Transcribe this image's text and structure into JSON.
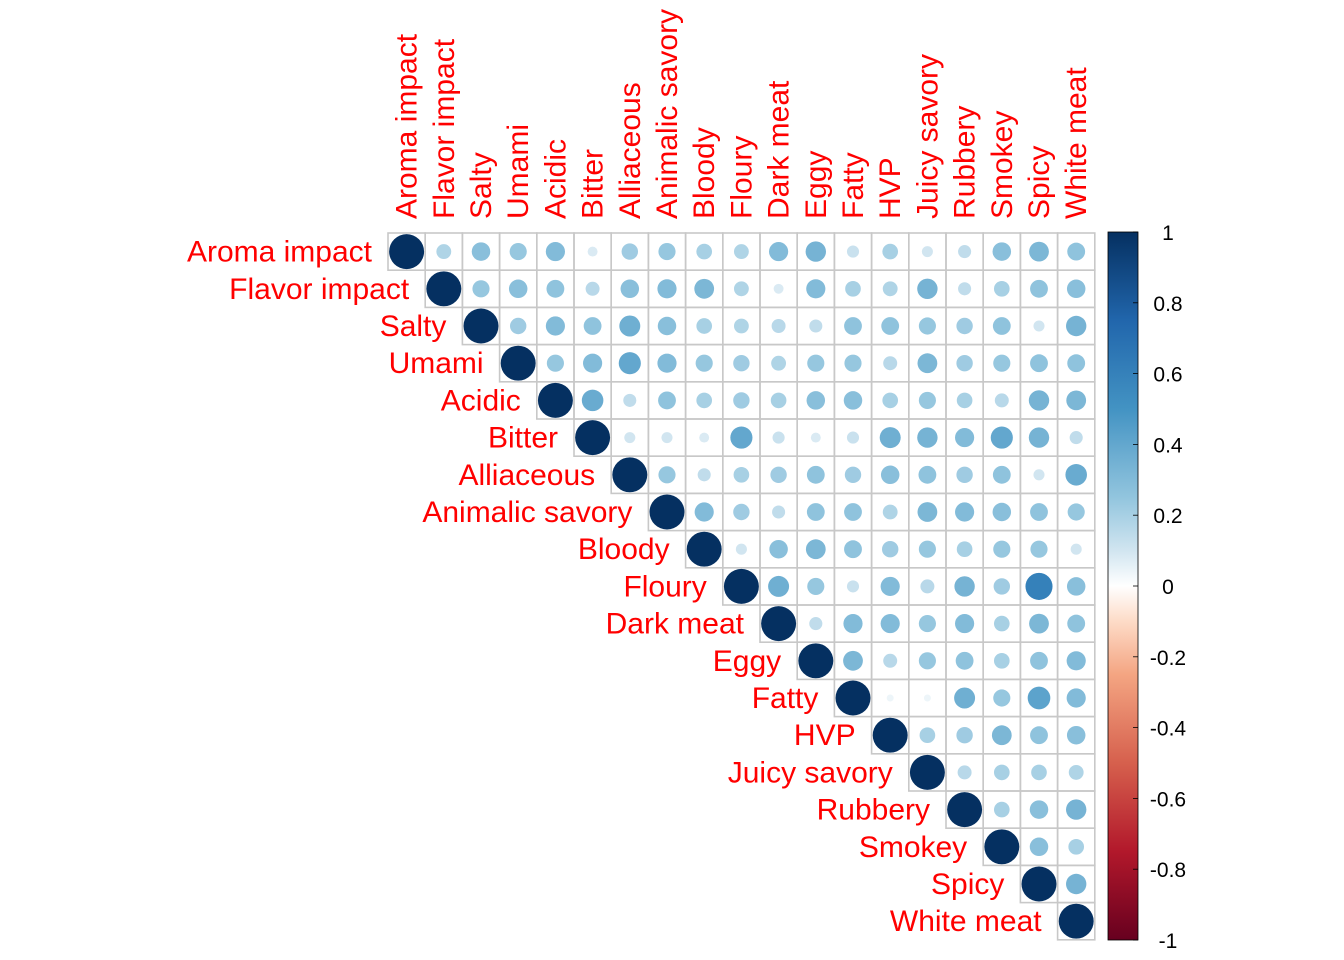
{
  "chart_data": {
    "type": "heatmap",
    "style": "correlation matrix, upper triangle, circle glyphs",
    "variables": [
      "Aroma impact",
      "Flavor impact",
      "Salty",
      "Umami",
      "Acidic",
      "Bitter",
      "Alliaceous",
      "Animalic savory",
      "Bloody",
      "Floury",
      "Dark meat",
      "Eggy",
      "Fatty",
      "HVP",
      "Juicy savory",
      "Rubbery",
      "Smokey",
      "Spicy",
      "White meat"
    ],
    "matrix": [
      [
        1,
        0.18,
        0.28,
        0.24,
        0.3,
        0.08,
        0.22,
        0.24,
        0.2,
        0.18,
        0.3,
        0.34,
        0.12,
        0.2,
        0.1,
        0.14,
        0.28,
        0.32,
        0.26
      ],
      [
        0.18,
        1,
        0.24,
        0.28,
        0.26,
        0.16,
        0.28,
        0.3,
        0.32,
        0.18,
        0.08,
        0.3,
        0.2,
        0.18,
        0.34,
        0.14,
        0.2,
        0.26,
        0.28
      ],
      [
        0.28,
        0.24,
        1,
        0.22,
        0.3,
        0.26,
        0.36,
        0.28,
        0.2,
        0.18,
        0.16,
        0.14,
        0.26,
        0.26,
        0.24,
        0.22,
        0.26,
        0.1,
        0.34
      ],
      [
        0.24,
        0.28,
        0.22,
        1,
        0.24,
        0.3,
        0.4,
        0.3,
        0.24,
        0.22,
        0.18,
        0.24,
        0.24,
        0.16,
        0.32,
        0.22,
        0.24,
        0.26,
        0.26
      ],
      [
        0.3,
        0.26,
        0.3,
        0.24,
        1,
        0.38,
        0.14,
        0.26,
        0.2,
        0.22,
        0.2,
        0.28,
        0.28,
        0.2,
        0.24,
        0.2,
        0.16,
        0.34,
        0.32
      ],
      [
        0.08,
        0.16,
        0.26,
        0.3,
        0.38,
        1,
        0.1,
        0.1,
        0.08,
        0.4,
        0.12,
        0.08,
        0.12,
        0.36,
        0.34,
        0.3,
        0.4,
        0.34,
        0.14
      ],
      [
        0.22,
        0.28,
        0.36,
        0.4,
        0.14,
        0.1,
        1,
        0.24,
        0.14,
        0.2,
        0.22,
        0.26,
        0.22,
        0.28,
        0.26,
        0.22,
        0.26,
        0.1,
        0.38
      ],
      [
        0.24,
        0.3,
        0.28,
        0.3,
        0.26,
        0.1,
        0.24,
        1,
        0.3,
        0.22,
        0.14,
        0.26,
        0.26,
        0.18,
        0.32,
        0.3,
        0.28,
        0.26,
        0.24
      ],
      [
        0.2,
        0.32,
        0.2,
        0.24,
        0.2,
        0.08,
        0.14,
        0.3,
        1,
        0.1,
        0.28,
        0.32,
        0.26,
        0.22,
        0.24,
        0.2,
        0.24,
        0.24,
        0.1
      ],
      [
        0.18,
        0.18,
        0.18,
        0.22,
        0.22,
        0.4,
        0.2,
        0.22,
        0.1,
        1,
        0.36,
        0.24,
        0.12,
        0.3,
        0.16,
        0.34,
        0.22,
        0.6,
        0.28
      ],
      [
        0.3,
        0.08,
        0.16,
        0.18,
        0.2,
        0.12,
        0.22,
        0.14,
        0.28,
        0.36,
        1,
        0.14,
        0.3,
        0.3,
        0.24,
        0.3,
        0.2,
        0.32,
        0.26
      ],
      [
        0.34,
        0.3,
        0.14,
        0.24,
        0.28,
        0.08,
        0.26,
        0.26,
        0.32,
        0.24,
        0.14,
        1,
        0.32,
        0.16,
        0.24,
        0.26,
        0.2,
        0.26,
        0.3
      ],
      [
        0.12,
        0.2,
        0.26,
        0.24,
        0.28,
        0.12,
        0.22,
        0.26,
        0.26,
        0.12,
        0.3,
        0.32,
        1,
        0.04,
        0.04,
        0.36,
        0.24,
        0.42,
        0.3
      ],
      [
        0.2,
        0.18,
        0.26,
        0.16,
        0.2,
        0.36,
        0.28,
        0.18,
        0.22,
        0.3,
        0.3,
        0.16,
        0.04,
        1,
        0.2,
        0.22,
        0.32,
        0.26,
        0.28
      ],
      [
        0.1,
        0.34,
        0.24,
        0.32,
        0.24,
        0.34,
        0.26,
        0.32,
        0.24,
        0.16,
        0.24,
        0.24,
        0.04,
        0.2,
        1,
        0.16,
        0.2,
        0.2,
        0.18
      ],
      [
        0.14,
        0.14,
        0.22,
        0.22,
        0.2,
        0.3,
        0.22,
        0.3,
        0.2,
        0.34,
        0.3,
        0.26,
        0.36,
        0.22,
        0.16,
        1,
        0.2,
        0.28,
        0.34
      ],
      [
        0.28,
        0.2,
        0.26,
        0.24,
        0.16,
        0.4,
        0.26,
        0.28,
        0.24,
        0.22,
        0.2,
        0.2,
        0.24,
        0.32,
        0.2,
        0.2,
        1,
        0.28,
        0.2
      ],
      [
        0.32,
        0.26,
        0.1,
        0.26,
        0.34,
        0.34,
        0.1,
        0.26,
        0.24,
        0.6,
        0.32,
        0.26,
        0.42,
        0.26,
        0.2,
        0.28,
        0.28,
        1,
        0.34
      ],
      [
        0.26,
        0.28,
        0.34,
        0.26,
        0.32,
        0.14,
        0.38,
        0.24,
        0.1,
        0.28,
        0.26,
        0.3,
        0.3,
        0.28,
        0.18,
        0.34,
        0.2,
        0.34,
        1
      ]
    ],
    "color_scale": {
      "min": -1,
      "max": 1,
      "ticks": [
        "1",
        "0.8",
        "0.6",
        "0.4",
        "0.2",
        "0",
        "-0.2",
        "-0.4",
        "-0.6",
        "-0.8",
        "-1"
      ],
      "stops": [
        {
          "value": -1,
          "color": "#67001F"
        },
        {
          "value": -0.75,
          "color": "#B2182B"
        },
        {
          "value": -0.5,
          "color": "#D6604D"
        },
        {
          "value": -0.25,
          "color": "#F4A582"
        },
        {
          "value": -0.1,
          "color": "#FDDBC7"
        },
        {
          "value": 0,
          "color": "#FFFFFF"
        },
        {
          "value": 0.1,
          "color": "#D1E5F0"
        },
        {
          "value": 0.25,
          "color": "#92C5DE"
        },
        {
          "value": 0.5,
          "color": "#4393C3"
        },
        {
          "value": 0.75,
          "color": "#2166AC"
        },
        {
          "value": 1,
          "color": "#053061"
        }
      ]
    },
    "label_color": "#FF0000",
    "grid_color": "#C8C8C8"
  }
}
